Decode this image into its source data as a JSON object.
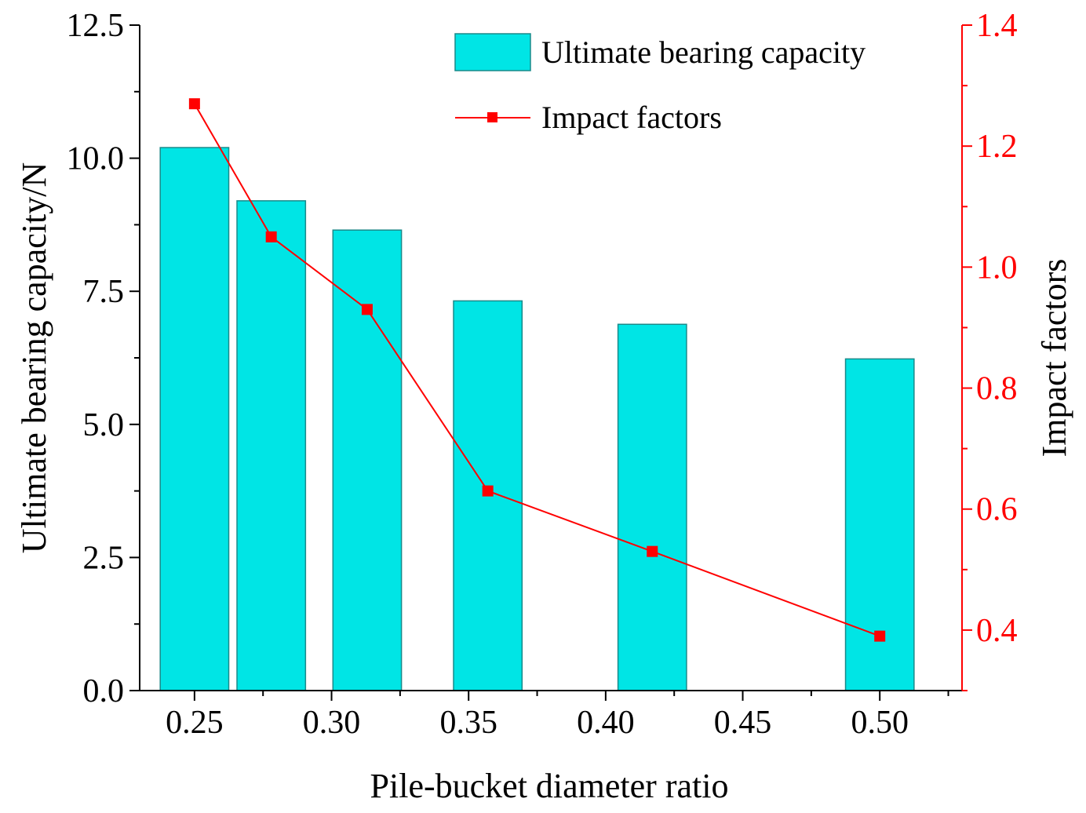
{
  "chart_data": {
    "type": "bar",
    "title": "",
    "xlabel": "Pile-bucket diameter ratio",
    "ylabel": "Ultimate bearing capacity/N",
    "y2label": "Impact factors",
    "xlim": [
      0.23,
      0.53
    ],
    "ylim": [
      0,
      12.5
    ],
    "y2lim": [
      0.3,
      1.4
    ],
    "x_ticks": [
      0.25,
      0.3,
      0.35,
      0.4,
      0.45,
      0.5
    ],
    "x_tick_labels": [
      "0.25",
      "0.30",
      "0.35",
      "0.40",
      "0.45",
      "0.50"
    ],
    "y_ticks": [
      0,
      2.5,
      5.0,
      7.5,
      10.0,
      12.5
    ],
    "y_tick_labels": [
      "0.0",
      "2.5",
      "5.0",
      "7.5",
      "10.0",
      "12.5"
    ],
    "y2_ticks": [
      0.4,
      0.6,
      0.8,
      1.0,
      1.2,
      1.4
    ],
    "y2_tick_labels": [
      "0.4",
      "0.6",
      "0.8",
      "1.0",
      "1.2",
      "1.4"
    ],
    "bar_width": 0.025,
    "series": [
      {
        "name": "Ultimate bearing capacity",
        "kind": "bar",
        "axis": "left",
        "color": "#00E5E5",
        "x": [
          0.25,
          0.278,
          0.313,
          0.357,
          0.417,
          0.5
        ],
        "values": [
          10.2,
          9.2,
          8.65,
          7.32,
          6.88,
          6.23
        ]
      },
      {
        "name": "Impact factors",
        "kind": "line",
        "axis": "right",
        "color": "#FF0000",
        "marker": "square",
        "x": [
          0.25,
          0.278,
          0.313,
          0.357,
          0.417,
          0.5
        ],
        "values": [
          1.27,
          1.05,
          0.93,
          0.63,
          0.53,
          0.39
        ]
      }
    ],
    "legend": {
      "position": "top-right",
      "entries": [
        "Ultimate bearing capacity",
        "Impact factors"
      ]
    },
    "colors": {
      "axis": "#000000",
      "right_axis": "#FF0000",
      "bar_edge": "#1A8A8A"
    }
  }
}
